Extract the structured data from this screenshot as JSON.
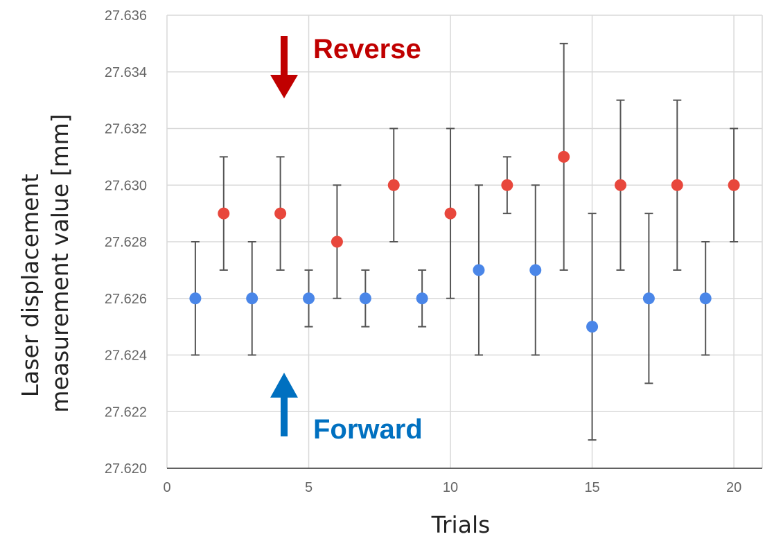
{
  "chart_data": {
    "type": "scatter",
    "title": "",
    "xlabel": "Trials",
    "ylabel_lines": [
      "Laser displacement",
      "measurement value [mm]"
    ],
    "xlim": [
      0,
      21
    ],
    "ylim": [
      27.62,
      27.636
    ],
    "x_ticks": [
      0,
      5,
      10,
      15,
      20
    ],
    "y_ticks": [
      "27.620",
      "27.622",
      "27.624",
      "27.626",
      "27.628",
      "27.630",
      "27.632",
      "27.634",
      "27.636"
    ],
    "grid": true,
    "series": [
      {
        "color": "#e8473c",
        "points": [
          {
            "x": 2,
            "y": 27.629,
            "low": 27.627,
            "high": 27.631
          },
          {
            "x": 4,
            "y": 27.629,
            "low": 27.627,
            "high": 27.631
          },
          {
            "x": 6,
            "y": 27.628,
            "low": 27.626,
            "high": 27.63
          },
          {
            "x": 8,
            "y": 27.63,
            "low": 27.628,
            "high": 27.632
          },
          {
            "x": 10,
            "y": 27.629,
            "low": 27.626,
            "high": 27.632
          },
          {
            "x": 12,
            "y": 27.63,
            "low": 27.629,
            "high": 27.631
          },
          {
            "x": 14,
            "y": 27.631,
            "low": 27.627,
            "high": 27.635
          },
          {
            "x": 16,
            "y": 27.63,
            "low": 27.627,
            "high": 27.633
          },
          {
            "x": 18,
            "y": 27.63,
            "low": 27.627,
            "high": 27.633
          },
          {
            "x": 20,
            "y": 27.63,
            "low": 27.628,
            "high": 27.632
          }
        ]
      },
      {
        "color": "#4a86e8",
        "points": [
          {
            "x": 1,
            "y": 27.626,
            "low": 27.624,
            "high": 27.628
          },
          {
            "x": 3,
            "y": 27.626,
            "low": 27.624,
            "high": 27.628
          },
          {
            "x": 5,
            "y": 27.626,
            "low": 27.625,
            "high": 27.627
          },
          {
            "x": 7,
            "y": 27.626,
            "low": 27.625,
            "high": 27.627
          },
          {
            "x": 9,
            "y": 27.626,
            "low": 27.625,
            "high": 27.627
          },
          {
            "x": 11,
            "y": 27.627,
            "low": 27.624,
            "high": 27.63
          },
          {
            "x": 13,
            "y": 27.627,
            "low": 27.624,
            "high": 27.63
          },
          {
            "x": 15,
            "y": 27.625,
            "low": 27.621,
            "high": 27.629
          },
          {
            "x": 17,
            "y": 27.626,
            "low": 27.623,
            "high": 27.629
          },
          {
            "x": 19,
            "y": 27.626,
            "low": 27.624,
            "high": 27.628
          }
        ]
      }
    ],
    "annotations": {
      "reverse": {
        "label": "Reverse",
        "color": "#c00000",
        "direction": "down"
      },
      "forward": {
        "label": "Forward",
        "color": "#0070c0",
        "direction": "up"
      }
    }
  }
}
